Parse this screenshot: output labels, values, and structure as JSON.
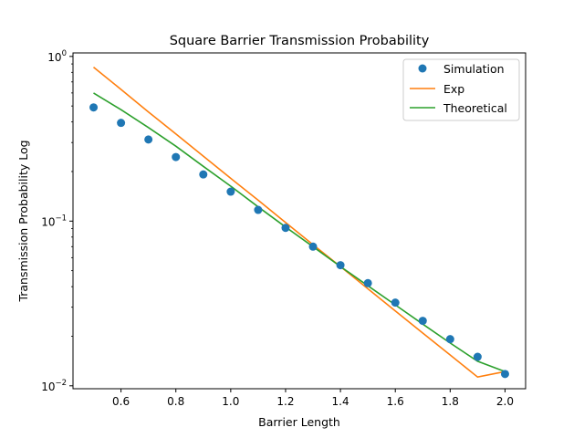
{
  "chart_data": {
    "type": "line",
    "title": "Square Barrier Transmission Probability",
    "xlabel": "Barrier Length",
    "ylabel": "Transmission Probability Log",
    "yscale": "log",
    "xlim": [
      0.425,
      2.075
    ],
    "ylim": [
      0.0096,
      1.05
    ],
    "grid": false,
    "legend_position": "top-right",
    "xticks": [
      "0.6",
      "0.8",
      "1.0",
      "1.2",
      "1.4",
      "1.6",
      "1.8",
      "2.0"
    ],
    "yticks": [
      {
        "value": 0.01,
        "base": "10",
        "exp": "−2"
      },
      {
        "value": 0.1,
        "base": "10",
        "exp": "−1"
      },
      {
        "value": 1,
        "base": "10",
        "exp": "0"
      }
    ],
    "x": [
      0.5,
      0.6,
      0.7,
      0.8,
      0.9,
      1.0,
      1.1,
      1.2,
      1.3,
      1.4,
      1.5,
      1.6,
      1.7,
      1.8,
      1.9,
      2.0
    ],
    "series": [
      {
        "name": "Simulation",
        "kind": "marker",
        "color": "#1f77b4",
        "values": [
          0.49,
          0.395,
          0.313,
          0.245,
          0.192,
          0.151,
          0.117,
          0.091,
          0.07,
          0.054,
          0.042,
          0.032,
          0.0248,
          0.0192,
          0.015,
          0.0118
        ]
      },
      {
        "name": "Exp",
        "kind": "line",
        "color": "#ff7f0e",
        "values": [
          0.86,
          0.63,
          0.46,
          0.338,
          0.248,
          0.182,
          0.134,
          0.098,
          0.072,
          0.053,
          0.0388,
          0.0285,
          0.0209,
          0.0154,
          0.0113,
          0.0122
        ]
      },
      {
        "name": "Theoretical",
        "kind": "line",
        "color": "#2ca02c",
        "values": [
          0.6,
          0.475,
          0.37,
          0.285,
          0.215,
          0.163,
          0.122,
          0.092,
          0.07,
          0.053,
          0.0405,
          0.031,
          0.0237,
          0.0182,
          0.0141,
          0.0122
        ]
      }
    ]
  }
}
